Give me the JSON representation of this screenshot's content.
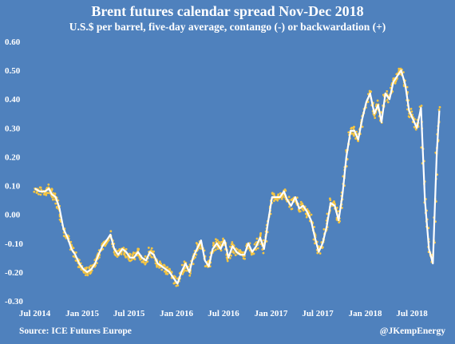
{
  "chart_data": {
    "type": "line",
    "title": "Brent futures calendar spread Nov-Dec 2018",
    "subtitle": "U.S.$ per barrel, five-day average, contango (-) or backwardation (+)",
    "source": "Source: ICE Futures Europe",
    "credit": "@JKempEnergy",
    "ylim": [
      -0.3,
      0.6
    ],
    "y_ticks": [
      "0.60",
      "0.50",
      "0.40",
      "0.30",
      "0.20",
      "0.10",
      "0.00",
      "-0.10",
      "-0.20",
      "-0.30"
    ],
    "y_tick_values": [
      0.6,
      0.5,
      0.4,
      0.3,
      0.2,
      0.1,
      0.0,
      -0.1,
      -0.2,
      -0.3
    ],
    "xlim": [
      "2014-06-20",
      "2018-10-20"
    ],
    "x_ticks": [
      "Jul 2014",
      "Jan 2015",
      "Jul 2015",
      "Jan 2016",
      "Jul 2016",
      "Jan 2017",
      "Jul 2017",
      "Jan 2018",
      "Jul 2018"
    ],
    "x_tick_dates": [
      "2014-07-01",
      "2015-01-01",
      "2015-07-01",
      "2016-01-01",
      "2016-07-01",
      "2017-01-01",
      "2017-07-01",
      "2018-01-01",
      "2018-07-01"
    ],
    "series": [
      {
        "style": "white line (five-day average) over orange daily points",
        "line_color": "#ffffff",
        "point_color": "#f5c542",
        "x": [
          "2014-07-01",
          "2014-07-20",
          "2014-08-10",
          "2014-08-25",
          "2014-09-05",
          "2014-09-20",
          "2014-10-05",
          "2014-10-20",
          "2014-11-05",
          "2014-11-20",
          "2014-12-05",
          "2014-12-20",
          "2015-01-05",
          "2015-01-20",
          "2015-02-05",
          "2015-02-20",
          "2015-03-05",
          "2015-03-20",
          "2015-04-05",
          "2015-04-20",
          "2015-05-05",
          "2015-05-20",
          "2015-06-05",
          "2015-06-20",
          "2015-07-05",
          "2015-07-20",
          "2015-08-05",
          "2015-08-20",
          "2015-09-05",
          "2015-09-20",
          "2015-10-05",
          "2015-10-20",
          "2015-11-05",
          "2015-11-20",
          "2015-12-05",
          "2015-12-20",
          "2016-01-05",
          "2016-01-20",
          "2016-02-05",
          "2016-02-20",
          "2016-03-05",
          "2016-03-20",
          "2016-04-05",
          "2016-04-20",
          "2016-05-05",
          "2016-05-20",
          "2016-06-05",
          "2016-06-20",
          "2016-07-05",
          "2016-07-20",
          "2016-08-05",
          "2016-08-20",
          "2016-09-05",
          "2016-09-20",
          "2016-10-05",
          "2016-10-20",
          "2016-11-05",
          "2016-11-20",
          "2016-12-05",
          "2016-12-20",
          "2017-01-05",
          "2017-01-20",
          "2017-02-05",
          "2017-02-20",
          "2017-03-05",
          "2017-03-20",
          "2017-04-05",
          "2017-04-20",
          "2017-05-05",
          "2017-05-20",
          "2017-06-05",
          "2017-06-20",
          "2017-07-05",
          "2017-07-20",
          "2017-08-05",
          "2017-08-20",
          "2017-09-05",
          "2017-09-20",
          "2017-10-05",
          "2017-10-20",
          "2017-11-05",
          "2017-11-20",
          "2017-12-05",
          "2017-12-20",
          "2018-01-05",
          "2018-01-20",
          "2018-02-05",
          "2018-02-20",
          "2018-03-05",
          "2018-03-20",
          "2018-04-05",
          "2018-04-20",
          "2018-05-05",
          "2018-05-20",
          "2018-06-05",
          "2018-06-20",
          "2018-07-05",
          "2018-07-20",
          "2018-08-05",
          "2018-08-20",
          "2018-09-05",
          "2018-09-20",
          "2018-10-05",
          "2018-10-15"
        ],
        "y": [
          0.09,
          0.08,
          0.08,
          0.09,
          0.07,
          0.06,
          0.02,
          -0.05,
          -0.08,
          -0.12,
          -0.14,
          -0.17,
          -0.19,
          -0.2,
          -0.19,
          -0.17,
          -0.14,
          -0.11,
          -0.09,
          -0.07,
          -0.12,
          -0.14,
          -0.12,
          -0.13,
          -0.15,
          -0.15,
          -0.13,
          -0.15,
          -0.16,
          -0.13,
          -0.14,
          -0.17,
          -0.18,
          -0.19,
          -0.2,
          -0.22,
          -0.24,
          -0.2,
          -0.17,
          -0.2,
          -0.15,
          -0.12,
          -0.09,
          -0.16,
          -0.18,
          -0.12,
          -0.1,
          -0.12,
          -0.09,
          -0.15,
          -0.11,
          -0.13,
          -0.14,
          -0.14,
          -0.1,
          -0.13,
          -0.11,
          -0.08,
          -0.12,
          -0.03,
          0.06,
          0.06,
          0.06,
          0.08,
          0.05,
          0.03,
          0.06,
          0.02,
          0.03,
          0.01,
          -0.02,
          -0.08,
          -0.13,
          -0.1,
          -0.04,
          0.04,
          0.03,
          -0.02,
          0.07,
          0.2,
          0.29,
          0.29,
          0.26,
          0.33,
          0.39,
          0.42,
          0.35,
          0.38,
          0.32,
          0.42,
          0.4,
          0.46,
          0.48,
          0.5,
          0.45,
          0.36,
          0.33,
          0.3,
          0.37,
          0.05,
          -0.12,
          -0.17,
          0.21,
          0.36
        ]
      }
    ],
    "grid": false,
    "legend": "none"
  }
}
